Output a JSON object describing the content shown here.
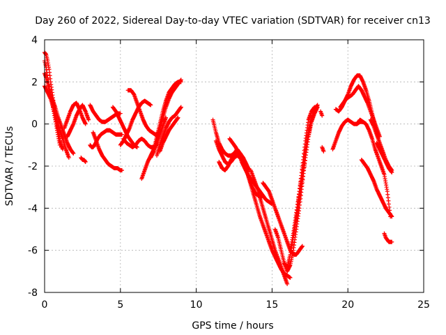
{
  "chart_data": {
    "type": "scatter",
    "title": "Day 260 of 2022, Sidereal Day-to-day VTEC variation (SDTVAR) for receiver cn13",
    "xlabel": "GPS time / hours",
    "ylabel": "SDTVAR / TECUs",
    "xlim": [
      0,
      25
    ],
    "ylim": [
      -8,
      4
    ],
    "x_ticks": [
      0,
      5,
      10,
      15,
      20,
      25
    ],
    "y_ticks": [
      -8,
      -6,
      -4,
      -2,
      0,
      2,
      4
    ],
    "x_tick_labels": [
      "0",
      "5",
      "10",
      "15",
      "20",
      "25"
    ],
    "y_tick_labels": [
      "-8",
      "-6",
      "-4",
      "-2",
      "0",
      "2",
      "4"
    ],
    "grid": true,
    "marker": "+",
    "color": "#ff0000",
    "traces": [
      {
        "x": [
          0.0,
          0.1,
          0.2,
          0.3,
          0.4,
          0.5,
          0.6,
          0.7,
          0.8,
          0.9,
          1.0,
          1.1,
          1.2
        ],
        "y": [
          3.4,
          3.3,
          3.0,
          2.6,
          2.0,
          1.5,
          1.0,
          0.5,
          0.0,
          -0.4,
          -0.8,
          -1.0,
          -1.2
        ]
      },
      {
        "x": [
          0.0,
          0.1,
          0.2,
          0.3,
          0.4,
          0.5,
          0.6,
          0.7,
          0.8,
          0.9,
          1.0
        ],
        "y": [
          3.0,
          2.7,
          2.2,
          1.8,
          1.3,
          1.0,
          0.6,
          0.2,
          -0.2,
          -0.6,
          -1.0
        ]
      },
      {
        "x": [
          0.0,
          0.1,
          0.2,
          0.3,
          0.4,
          0.5,
          0.6,
          0.7,
          0.8,
          0.9,
          1.0,
          1.1
        ],
        "y": [
          2.4,
          2.2,
          1.9,
          1.6,
          1.3,
          1.1,
          0.8,
          0.4,
          0.0,
          -0.3,
          -0.7,
          -1.1
        ]
      },
      {
        "x": [
          0.0,
          0.2,
          0.4,
          0.6,
          0.8,
          1.0,
          1.2,
          1.4,
          1.6
        ],
        "y": [
          1.8,
          1.5,
          1.2,
          0.7,
          0.2,
          -0.3,
          -0.7,
          -1.2,
          -1.6
        ]
      },
      {
        "x": [
          0.3,
          0.5,
          0.7,
          0.9,
          1.1,
          1.3,
          1.5,
          1.7,
          1.9
        ],
        "y": [
          1.6,
          1.2,
          0.8,
          0.3,
          -0.1,
          -0.5,
          -0.9,
          -1.2,
          -1.4
        ]
      },
      {
        "x": [
          1.3,
          1.5,
          1.7,
          1.9,
          2.1,
          2.3,
          2.5,
          2.7
        ],
        "y": [
          -0.2,
          0.2,
          0.6,
          0.9,
          1.0,
          0.7,
          0.3,
          0.0
        ]
      },
      {
        "x": [
          1.5,
          1.7,
          1.9,
          2.1,
          2.3,
          2.5,
          2.7,
          2.9
        ],
        "y": [
          -0.6,
          -0.3,
          0.0,
          0.4,
          0.7,
          0.9,
          0.6,
          0.2
        ]
      },
      {
        "x": [
          2.4,
          2.5,
          2.6,
          2.7
        ],
        "y": [
          -1.6,
          -1.7,
          -1.7,
          -1.8
        ]
      },
      {
        "x": [
          3.0,
          3.2,
          3.4,
          3.6,
          3.8,
          4.0,
          4.2,
          4.4,
          4.6,
          4.8,
          5.0
        ],
        "y": [
          0.9,
          0.6,
          0.4,
          0.2,
          0.1,
          0.1,
          0.2,
          0.3,
          0.4,
          0.5,
          0.5
        ]
      },
      {
        "x": [
          3.3,
          3.5,
          3.7,
          3.9,
          4.1,
          4.3,
          4.5,
          4.7,
          4.9,
          5.1
        ],
        "y": [
          -1.0,
          -0.7,
          -0.5,
          -0.4,
          -0.3,
          -0.3,
          -0.4,
          -0.5,
          -0.5,
          -0.5
        ]
      },
      {
        "x": [
          3.2,
          3.4,
          3.6,
          3.8,
          4.0,
          4.2,
          4.4,
          4.6,
          4.8,
          5.0,
          5.1
        ],
        "y": [
          -0.4,
          -0.8,
          -1.2,
          -1.5,
          -1.7,
          -1.9,
          -2.0,
          -2.1,
          -2.1,
          -2.2,
          -2.2
        ]
      },
      {
        "x": [
          3.0,
          3.1,
          3.2,
          3.3,
          3.4
        ],
        "y": [
          -1.0,
          -1.1,
          -1.1,
          -1.0,
          -0.9
        ]
      },
      {
        "x": [
          4.5,
          4.7,
          4.9,
          5.1,
          5.3,
          5.5,
          5.7,
          5.9,
          6.1
        ],
        "y": [
          0.8,
          0.6,
          0.3,
          0.0,
          -0.3,
          -0.6,
          -0.8,
          -1.0,
          -1.1
        ]
      },
      {
        "x": [
          5.0,
          5.2,
          5.4,
          5.6,
          5.8,
          6.0,
          6.2,
          6.4,
          6.6,
          6.8,
          7.0
        ],
        "y": [
          -1.0,
          -0.8,
          -0.5,
          -0.2,
          0.2,
          0.5,
          0.8,
          1.0,
          1.1,
          1.0,
          0.9
        ]
      },
      {
        "x": [
          5.5,
          5.7,
          5.9,
          6.1,
          6.3,
          6.5,
          6.7,
          6.9,
          7.1,
          7.3,
          7.5
        ],
        "y": [
          1.6,
          1.6,
          1.4,
          1.0,
          0.6,
          0.2,
          -0.1,
          -0.3,
          -0.4,
          -0.5,
          -0.5
        ]
      },
      {
        "x": [
          5.2,
          5.4,
          5.6,
          5.8,
          6.0,
          6.2,
          6.4,
          6.6,
          6.8,
          7.0,
          7.2,
          7.4
        ],
        "y": [
          -0.7,
          -0.9,
          -1.0,
          -1.1,
          -1.0,
          -0.8,
          -0.7,
          -0.8,
          -1.0,
          -1.1,
          -1.1,
          -1.0
        ]
      },
      {
        "x": [
          6.4,
          6.6,
          6.8,
          7.0,
          7.2,
          7.4,
          7.6,
          7.8,
          8.0
        ],
        "y": [
          -2.6,
          -2.2,
          -1.8,
          -1.5,
          -1.2,
          -0.9,
          -0.5,
          -0.1,
          0.3
        ]
      },
      {
        "x": [
          7.0,
          7.2,
          7.4,
          7.6,
          7.8,
          8.0,
          8.2,
          8.4,
          8.6,
          8.8,
          9.0
        ],
        "y": [
          -1.6,
          -1.3,
          -0.8,
          -0.2,
          0.3,
          0.8,
          1.2,
          1.5,
          1.7,
          1.9,
          2.1
        ]
      },
      {
        "x": [
          7.2,
          7.4,
          7.6,
          7.8,
          8.0,
          8.2,
          8.4,
          8.6,
          8.8,
          9.0
        ],
        "y": [
          -1.2,
          -0.6,
          0.0,
          0.6,
          1.1,
          1.5,
          1.7,
          1.9,
          2.0,
          2.0
        ]
      },
      {
        "x": [
          7.4,
          7.6,
          7.8,
          8.0,
          8.2,
          8.4,
          8.6,
          8.8,
          9.0
        ],
        "y": [
          -1.5,
          -1.0,
          -0.6,
          -0.2,
          0.1,
          0.3,
          0.4,
          0.6,
          0.8
        ]
      },
      {
        "x": [
          7.6,
          7.8,
          8.0,
          8.2,
          8.4,
          8.6,
          8.8
        ],
        "y": [
          -1.3,
          -0.9,
          -0.6,
          -0.3,
          -0.1,
          0.1,
          0.3
        ]
      },
      {
        "x": [
          11.1,
          11.3,
          11.5,
          11.7,
          11.9,
          12.1,
          12.3,
          12.5,
          12.7,
          12.9,
          13.1,
          13.3,
          13.5
        ],
        "y": [
          0.2,
          -0.4,
          -0.9,
          -1.2,
          -1.4,
          -1.5,
          -1.5,
          -1.4,
          -1.3,
          -1.4,
          -1.6,
          -1.9,
          -2.2
        ]
      },
      {
        "x": [
          11.3,
          11.5,
          11.7,
          11.9,
          12.1,
          12.3,
          12.5,
          12.7,
          12.9,
          13.1,
          13.3
        ],
        "y": [
          -0.8,
          -1.2,
          -1.5,
          -1.8,
          -1.9,
          -1.8,
          -1.6,
          -1.5,
          -1.6,
          -1.8,
          -2.0
        ]
      },
      {
        "x": [
          11.5,
          11.7,
          11.9,
          12.1,
          12.3,
          12.5,
          12.7,
          12.9,
          13.1,
          13.3,
          13.5,
          13.7,
          13.9,
          14.1,
          14.3
        ],
        "y": [
          -1.8,
          -2.1,
          -2.2,
          -2.0,
          -1.7,
          -1.4,
          -1.2,
          -1.4,
          -1.8,
          -2.2,
          -2.6,
          -3.0,
          -3.3,
          -3.4,
          -3.5
        ]
      },
      {
        "x": [
          12.2,
          12.4,
          12.6,
          12.8,
          13.0,
          13.2,
          13.4,
          13.6,
          13.8,
          14.0,
          14.2,
          14.4,
          14.6,
          14.8,
          15.0
        ],
        "y": [
          -0.7,
          -0.9,
          -1.1,
          -1.4,
          -1.8,
          -2.1,
          -2.4,
          -2.6,
          -2.8,
          -3.0,
          -3.2,
          -3.4,
          -3.6,
          -3.7,
          -3.8
        ]
      },
      {
        "x": [
          13.0,
          13.2,
          13.4,
          13.6,
          13.8,
          14.0,
          14.2,
          14.4,
          14.6,
          14.8,
          15.0,
          15.2,
          15.4,
          15.6,
          15.8,
          16.0,
          16.2
        ],
        "y": [
          -1.6,
          -2.0,
          -2.4,
          -2.9,
          -3.4,
          -3.9,
          -4.4,
          -4.8,
          -5.2,
          -5.6,
          -6.0,
          -6.3,
          -6.6,
          -6.9,
          -7.1,
          -7.2,
          -7.3
        ]
      },
      {
        "x": [
          13.6,
          13.8,
          14.0,
          14.2,
          14.4,
          14.6,
          14.8,
          15.0,
          15.2,
          15.4,
          15.6,
          15.8,
          16.0
        ],
        "y": [
          -2.2,
          -2.6,
          -3.0,
          -3.5,
          -4.0,
          -4.5,
          -5.0,
          -5.5,
          -6.0,
          -6.4,
          -6.8,
          -7.2,
          -7.6
        ]
      },
      {
        "x": [
          14.4,
          14.6,
          14.8,
          15.0,
          15.2,
          15.4,
          15.6,
          15.8,
          16.0,
          16.2,
          16.4,
          16.6,
          16.8,
          17.0
        ],
        "y": [
          -2.8,
          -3.0,
          -3.2,
          -3.6,
          -4.0,
          -4.4,
          -4.8,
          -5.2,
          -5.6,
          -6.0,
          -6.2,
          -6.2,
          -6.0,
          -5.8
        ]
      },
      {
        "x": [
          15.2,
          15.4,
          15.6,
          15.8,
          16.0,
          16.2,
          16.4,
          16.6,
          16.8,
          17.0,
          17.2,
          17.4,
          17.6,
          17.8,
          18.0
        ],
        "y": [
          -5.0,
          -5.4,
          -6.0,
          -6.6,
          -7.0,
          -6.7,
          -6.0,
          -5.0,
          -4.0,
          -2.8,
          -1.6,
          -0.6,
          0.2,
          0.7,
          0.9
        ]
      },
      {
        "x": [
          15.8,
          16.0,
          16.2,
          16.4,
          16.6,
          16.8,
          17.0,
          17.2,
          17.4,
          17.6,
          17.8
        ],
        "y": [
          -6.6,
          -6.8,
          -6.2,
          -5.4,
          -4.4,
          -3.2,
          -2.0,
          -0.8,
          0.2,
          0.6,
          0.8
        ]
      },
      {
        "x": [
          16.2,
          16.4,
          16.6,
          16.8,
          17.0,
          17.2,
          17.4,
          17.6,
          17.8
        ],
        "y": [
          -6.0,
          -5.2,
          -4.2,
          -3.2,
          -2.2,
          -1.2,
          -0.3,
          0.2,
          0.6
        ]
      },
      {
        "x": [
          16.6,
          16.8,
          17.0,
          17.2,
          17.4,
          17.6,
          17.8,
          18.0
        ],
        "y": [
          -4.6,
          -3.6,
          -2.6,
          -1.6,
          -0.6,
          0.1,
          0.5,
          0.8
        ]
      },
      {
        "x": [
          18.2,
          18.3,
          18.3,
          18.4
        ],
        "y": [
          0.6,
          0.4,
          -1.1,
          -1.3
        ]
      },
      {
        "x": [
          19.0,
          19.2,
          19.4,
          19.6,
          19.8,
          20.0,
          20.2,
          20.4,
          20.6,
          20.8,
          21.0
        ],
        "y": [
          -1.2,
          -0.8,
          -0.4,
          -0.1,
          0.1,
          0.2,
          0.1,
          0.0,
          0.0,
          0.1,
          0.1
        ]
      },
      {
        "x": [
          19.2,
          19.4,
          19.6,
          19.8,
          20.0,
          20.2,
          20.4,
          20.6,
          20.8,
          21.0,
          21.2,
          21.4,
          21.6,
          21.8,
          22.0
        ],
        "y": [
          0.7,
          0.6,
          0.8,
          1.1,
          1.4,
          1.8,
          2.1,
          2.3,
          2.3,
          2.0,
          1.6,
          1.1,
          0.5,
          -0.1,
          -0.6
        ]
      },
      {
        "x": [
          19.5,
          19.7,
          19.9,
          20.1,
          20.3,
          20.5,
          20.7,
          20.9,
          21.1,
          21.3,
          21.5,
          21.7,
          21.9,
          22.1
        ],
        "y": [
          0.8,
          1.0,
          1.2,
          1.3,
          1.4,
          1.6,
          1.8,
          1.6,
          1.3,
          1.0,
          0.6,
          0.2,
          -0.2,
          -0.6
        ]
      },
      {
        "x": [
          20.6,
          20.8,
          21.0,
          21.2,
          21.4,
          21.6,
          21.8,
          22.0,
          22.2,
          22.4,
          22.6,
          22.8
        ],
        "y": [
          0.0,
          0.2,
          0.1,
          0.0,
          -0.3,
          -0.7,
          -1.2,
          -1.6,
          -2.0,
          -2.4,
          -3.2,
          -4.4
        ]
      },
      {
        "x": [
          20.9,
          21.1,
          21.3,
          21.5,
          21.7,
          21.9,
          22.1,
          22.3,
          22.5,
          22.7,
          22.9
        ],
        "y": [
          -1.7,
          -1.9,
          -2.1,
          -2.4,
          -2.7,
          -3.1,
          -3.4,
          -3.7,
          -4.0,
          -4.2,
          -4.4
        ]
      },
      {
        "x": [
          21.5,
          21.7,
          21.9,
          22.1,
          22.3,
          22.5,
          22.7,
          22.9
        ],
        "y": [
          0.2,
          -0.1,
          -0.5,
          -0.9,
          -1.3,
          -1.7,
          -2.0,
          -2.2
        ]
      },
      {
        "x": [
          21.9,
          22.1,
          22.3,
          22.5,
          22.7,
          22.9
        ],
        "y": [
          -0.9,
          -1.2,
          -1.5,
          -1.8,
          -2.1,
          -2.3
        ]
      },
      {
        "x": [
          22.4,
          22.5,
          22.6,
          22.7,
          22.8,
          22.9
        ],
        "y": [
          -5.2,
          -5.4,
          -5.5,
          -5.6,
          -5.6,
          -5.6
        ]
      }
    ]
  }
}
